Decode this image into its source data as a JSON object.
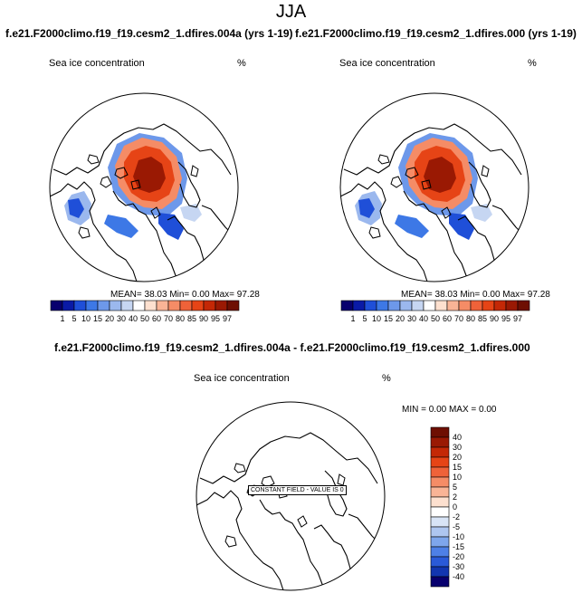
{
  "page_title": "JJA",
  "panels": [
    {
      "title": "f.e21.F2000climo.f19_f19.cesm2_1.dfires.004a (yrs 1-19)",
      "variable": "Sea ice concentration",
      "units": "%",
      "stats": {
        "mean": "38.03",
        "min": "0.00",
        "max": "97.28"
      },
      "stats_text": "MEAN=  38.03  Min=   0.00  Max=  97.28"
    },
    {
      "title": "f.e21.F2000climo.f19_f19.cesm2_1.dfires.000 (yrs 1-19)",
      "variable": "Sea ice concentration",
      "units": "%",
      "stats": {
        "mean": "38.03",
        "min": "0.00",
        "max": "97.28"
      },
      "stats_text": "MEAN=  38.03  Min=   0.00  Max=  97.28"
    }
  ],
  "diff_panel": {
    "title": "f.e21.F2000climo.f19_f19.cesm2_1.dfires.004a - f.e21.F2000climo.f19_f19.cesm2_1.dfires.000",
    "variable": "Sea ice concentration",
    "units": "%",
    "stats_text": "MIN =   0.00 MAX =   0.00",
    "constant_label": "CONSTANT FIELD - VALUE IS 0"
  },
  "chart_data": [
    {
      "type": "heatmap",
      "projection": "north polar stereographic",
      "title": "f.e21.F2000climo.f19_f19.cesm2_1.dfires.004a (yrs 1-19)",
      "variable": "Sea ice concentration",
      "units": "%",
      "mean": 38.03,
      "min": 0.0,
      "max": 97.28,
      "colorbar_levels": [
        1,
        5,
        10,
        15,
        20,
        30,
        40,
        50,
        60,
        70,
        80,
        85,
        90,
        95,
        97
      ],
      "colorbar_orientation": "horizontal"
    },
    {
      "type": "heatmap",
      "projection": "north polar stereographic",
      "title": "f.e21.F2000climo.f19_f19.cesm2_1.dfires.000 (yrs 1-19)",
      "variable": "Sea ice concentration",
      "units": "%",
      "mean": 38.03,
      "min": 0.0,
      "max": 97.28,
      "colorbar_levels": [
        1,
        5,
        10,
        15,
        20,
        30,
        40,
        50,
        60,
        70,
        80,
        85,
        90,
        95,
        97
      ],
      "colorbar_orientation": "horizontal"
    },
    {
      "type": "heatmap",
      "projection": "north polar stereographic",
      "title": "f.e21.F2000climo.f19_f19.cesm2_1.dfires.004a - f.e21.F2000climo.f19_f19.cesm2_1.dfires.000",
      "variable": "Sea ice concentration",
      "units": "%",
      "min": 0.0,
      "max": 0.0,
      "constant_value": 0,
      "colorbar_levels": [
        40,
        30,
        20,
        15,
        10,
        5,
        2,
        0,
        -2,
        -5,
        -10,
        -15,
        -20,
        -30,
        -40
      ],
      "colorbar_orientation": "vertical"
    }
  ],
  "colors": {
    "seq_scale": [
      "#08006e",
      "#0a1aa6",
      "#1f4fd8",
      "#3d78e6",
      "#6d98ea",
      "#9bb8ee",
      "#c6d6f2",
      "#ffffff",
      "#fde0cf",
      "#f9b496",
      "#f58c66",
      "#ef6239",
      "#e64416",
      "#c42806",
      "#9a1903",
      "#6e0f02"
    ],
    "diff_scale": [
      "#6e0f02",
      "#9a1903",
      "#c42806",
      "#e64416",
      "#ef6239",
      "#f58c66",
      "#f9b496",
      "#fde0cf",
      "#ffffff",
      "#d8e4f6",
      "#aec6f0",
      "#7ea6ec",
      "#4e80e6",
      "#2a5ad8",
      "#1236b0",
      "#08006e"
    ]
  }
}
